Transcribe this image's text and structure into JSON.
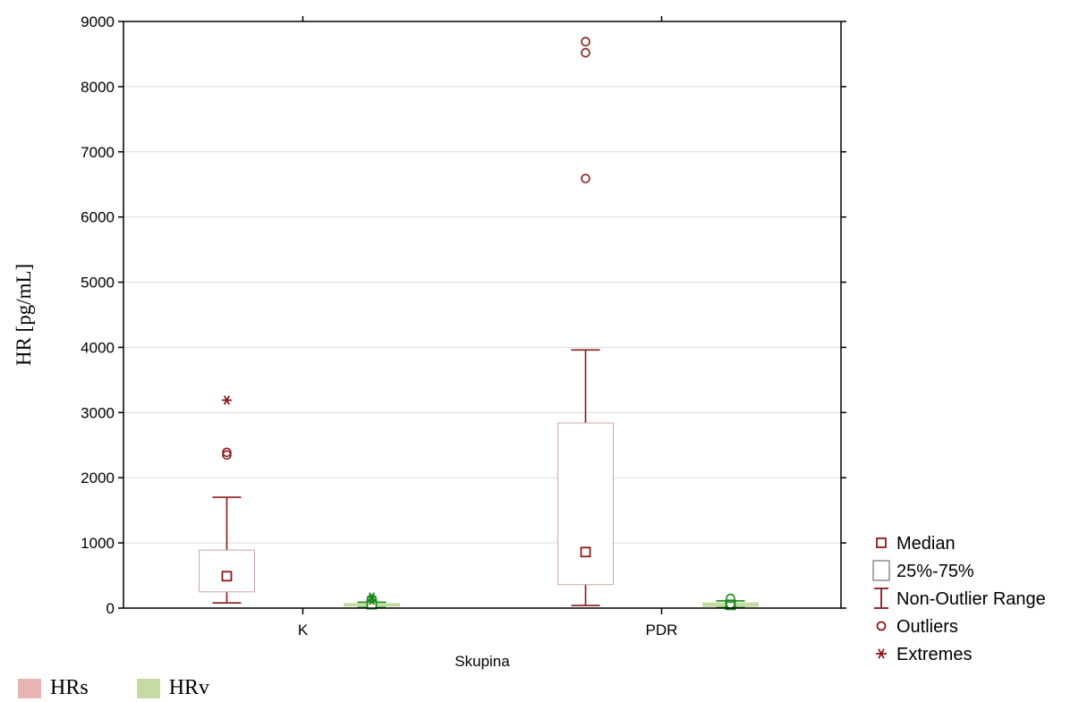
{
  "chart_data": {
    "type": "boxplot",
    "xlabel": "Skupina",
    "ylabel": "HR [pg/mL]",
    "categories": [
      "K",
      "PDR"
    ],
    "ylim": [
      0,
      9000
    ],
    "yticks": [
      0,
      1000,
      2000,
      3000,
      4000,
      5000,
      6000,
      7000,
      8000,
      9000
    ],
    "grid": true,
    "series": [
      {
        "name": "HRs",
        "color": "#8b1a1a",
        "fill": "#e8b4b4",
        "boxes": [
          {
            "category": "K",
            "median": 490,
            "q1": 250,
            "q3": 890,
            "whisker_low": 80,
            "whisker_high": 1700,
            "outliers": [
              2350,
              2390
            ],
            "extremes": [
              3190
            ]
          },
          {
            "category": "PDR",
            "median": 860,
            "q1": 360,
            "q3": 2840,
            "whisker_low": 40,
            "whisker_high": 3960,
            "outliers": [
              6590,
              8520,
              8690
            ],
            "extremes": []
          }
        ]
      },
      {
        "name": "HRv",
        "color": "#1a8a1a",
        "fill": "#c5dba3",
        "boxes": [
          {
            "category": "K",
            "median": 60,
            "q1": 30,
            "q3": 70,
            "whisker_low": 10,
            "whisker_high": 90,
            "outliers": [
              140
            ],
            "extremes": [
              120,
              170
            ]
          },
          {
            "category": "PDR",
            "median": 50,
            "q1": 25,
            "q3": 80,
            "whisker_low": 10,
            "whisker_high": 110,
            "outliers": [
              60,
              150
            ],
            "extremes": []
          }
        ]
      }
    ],
    "legend_markers": [
      {
        "label": "Median",
        "symbol": "median"
      },
      {
        "label": "25%-75%",
        "symbol": "box"
      },
      {
        "label": "Non-Outlier Range",
        "symbol": "range"
      },
      {
        "label": "Outliers",
        "symbol": "outlier"
      },
      {
        "label": "Extremes",
        "symbol": "extreme"
      }
    ],
    "legend_placement": "bottom-right"
  },
  "series_legend": [
    {
      "label": "HRs",
      "color": "#e8b4b4"
    },
    {
      "label": "HRv",
      "color": "#c5dba3"
    }
  ]
}
